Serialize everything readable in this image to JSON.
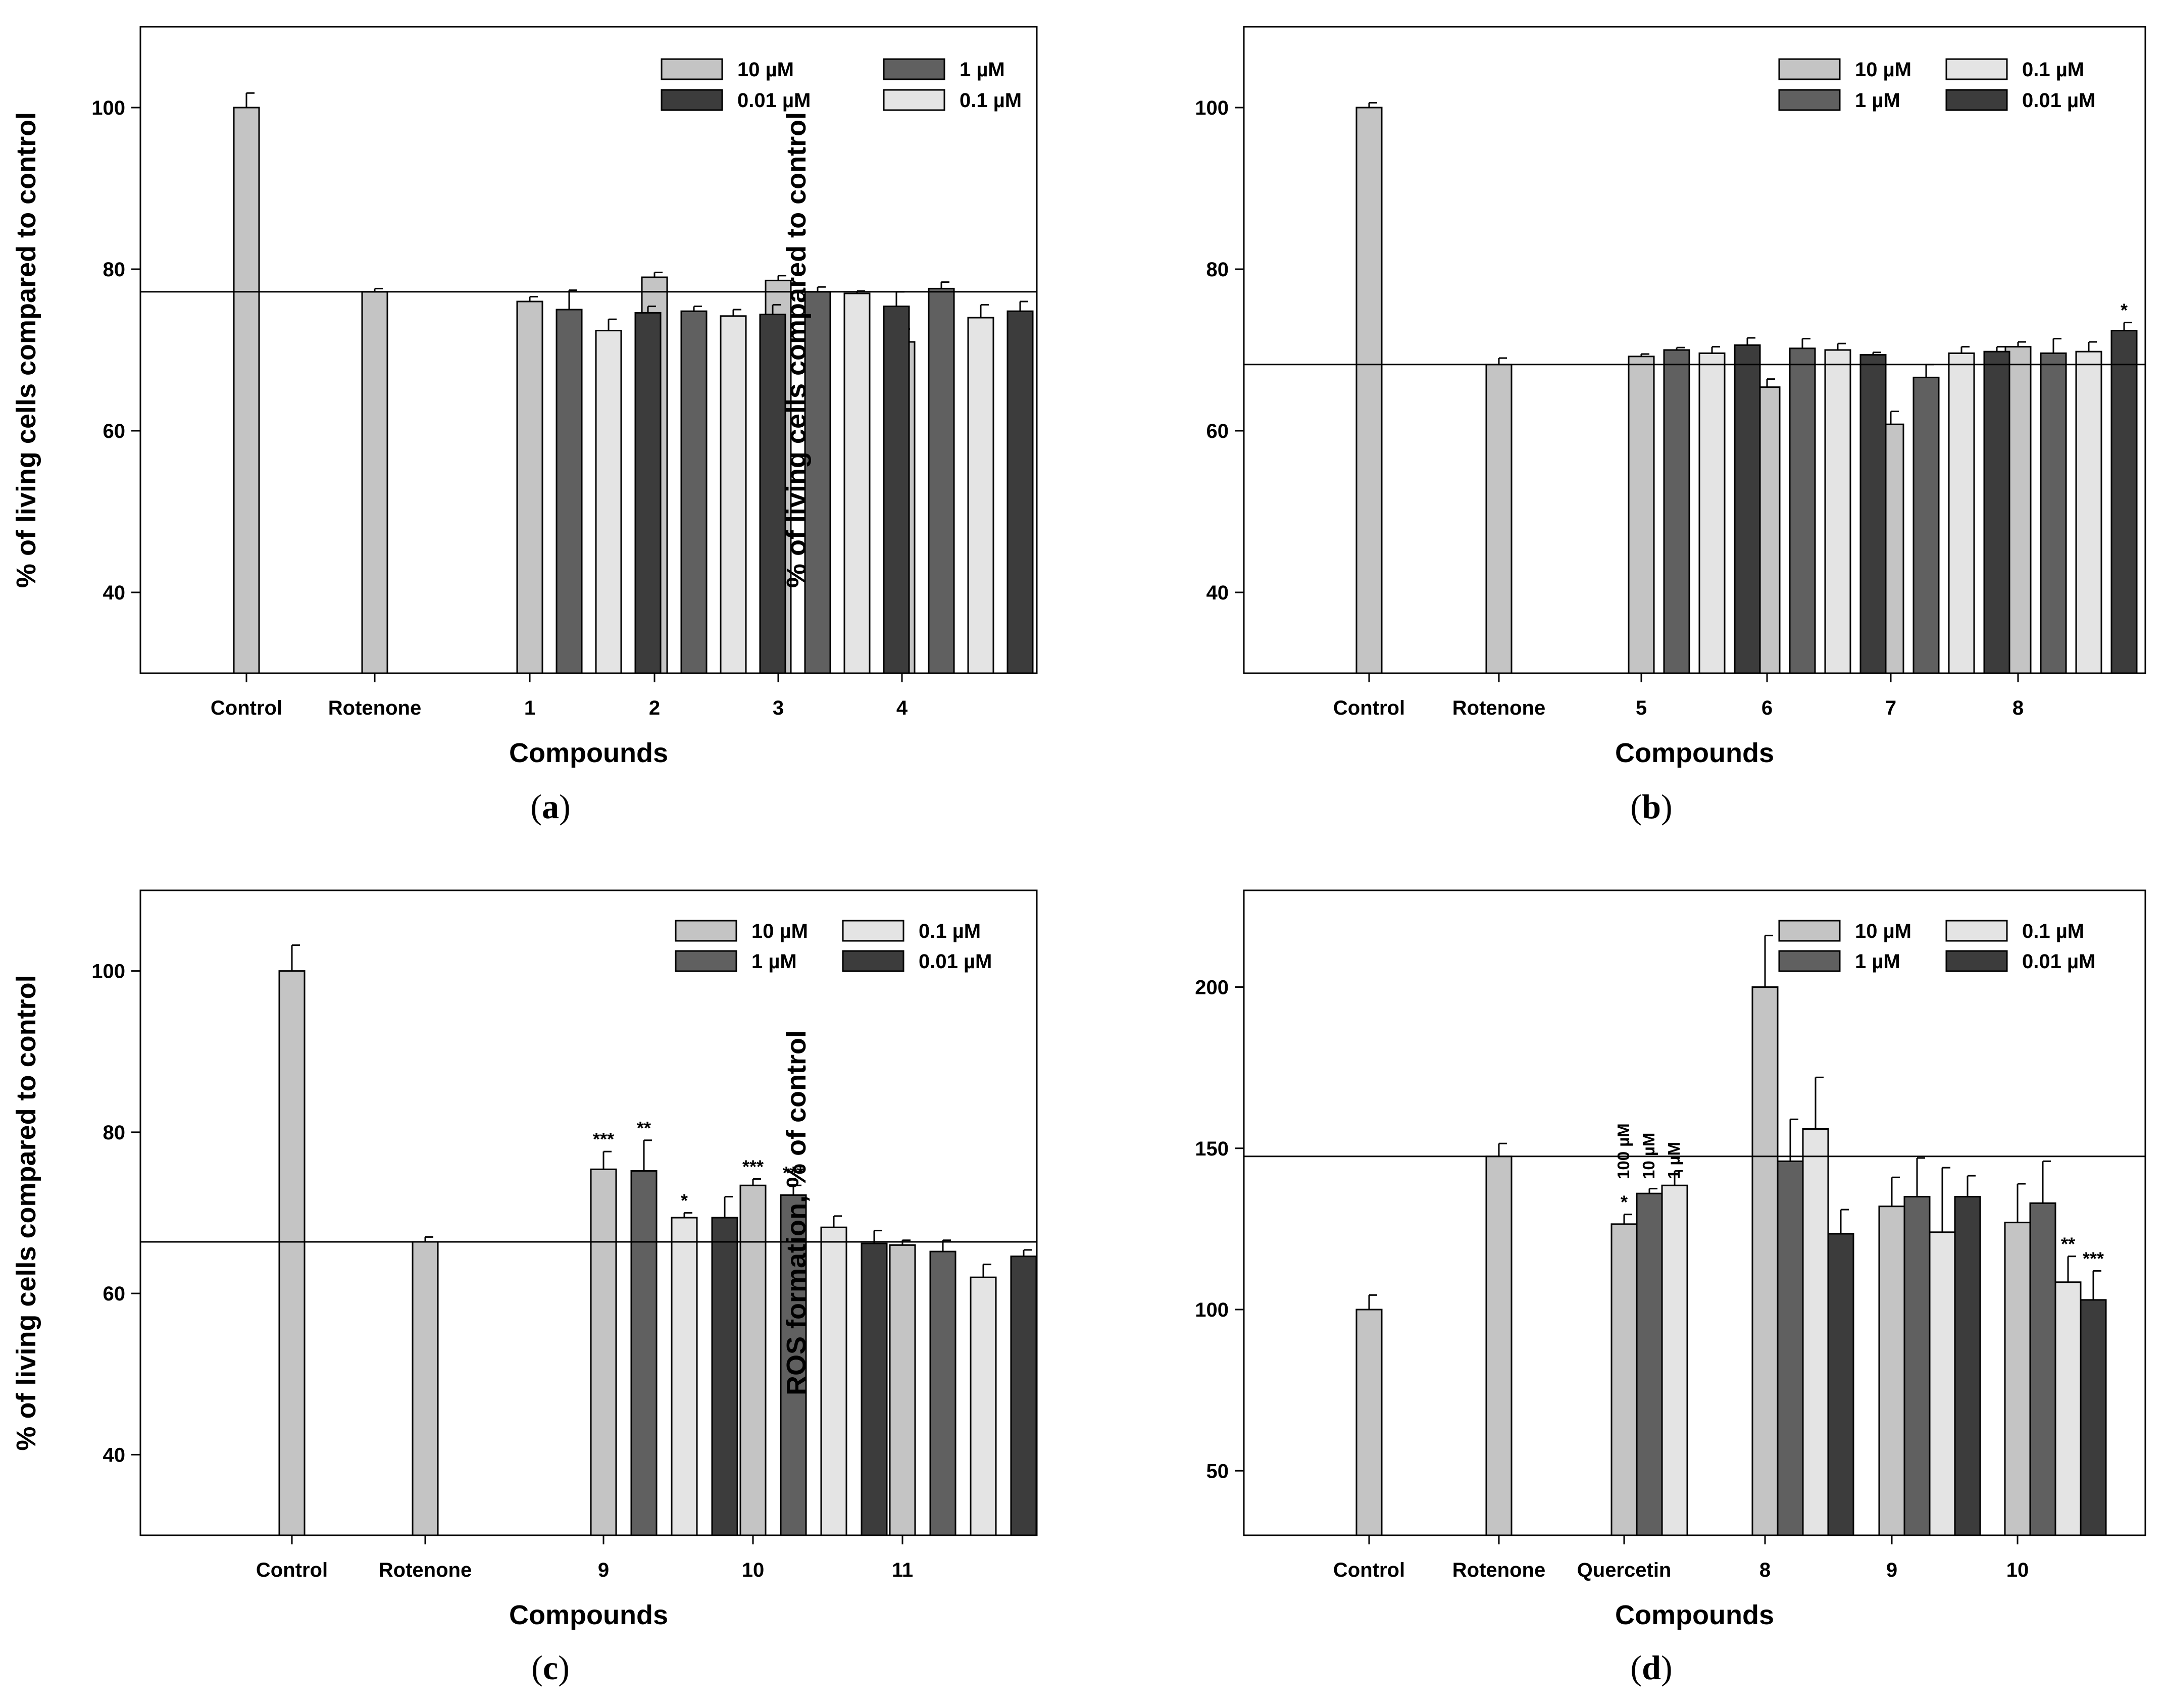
{
  "colors": {
    "c10": "#c4c4c4",
    "c1": "#606060",
    "c001": "#3c3c3c",
    "c01": "#e4e4e4"
  },
  "chart_data": [
    {
      "type": "bar",
      "panel_label": "a",
      "caption": [
        "(",
        "a",
        ")"
      ],
      "xlabel": "Compounds",
      "ylabel": "% of living cells compared to control",
      "ylim": [
        30,
        110
      ],
      "yticks": [
        "40",
        "60",
        "80",
        "100"
      ],
      "ref_line": 77.2,
      "categories": [
        "Control",
        "Rotenone",
        "1",
        "2",
        "3",
        "4"
      ],
      "series": [
        {
          "name": "10 µM",
          "color_key": "c10",
          "values": [
            100,
            77.2,
            76,
            79,
            78.6,
            71
          ],
          "errors": [
            1.8,
            0.4,
            0.6,
            0.6,
            0.6,
            1.6
          ]
        },
        {
          "name": "1 µM",
          "color_key": "c1",
          "values": [
            null,
            null,
            75,
            74.8,
            77.2,
            77.6
          ],
          "errors": [
            null,
            null,
            2.4,
            0.6,
            0.6,
            0.8
          ]
        },
        {
          "name": "0.1 µM",
          "color_key": "c01",
          "values": [
            null,
            null,
            72.4,
            74.2,
            77,
            74
          ],
          "errors": [
            null,
            null,
            1.4,
            0.8,
            0.3,
            1.6
          ]
        },
        {
          "name": "0.01 µM",
          "color_key": "c001",
          "values": [
            null,
            null,
            74.6,
            74.4,
            75.4,
            74.8
          ],
          "errors": [
            null,
            null,
            0.8,
            1.2,
            1.8,
            1.2
          ]
        }
      ],
      "legend": {
        "entries": [
          "10 µM",
          "1 µM",
          "0.01 µM",
          "0.1 µM"
        ],
        "placement": "top-right"
      },
      "stars": [],
      "annotations": []
    },
    {
      "type": "bar",
      "panel_label": "b",
      "caption": [
        "(",
        "b",
        ")"
      ],
      "xlabel": "Compounds",
      "ylabel": "% of living cells compared to control",
      "ylim": [
        30,
        110
      ],
      "yticks": [
        "40",
        "60",
        "80",
        "100"
      ],
      "ref_line": 68.2,
      "categories": [
        "Control",
        "Rotenone",
        "5",
        "6",
        "7",
        "8"
      ],
      "series": [
        {
          "name": "10 µM",
          "color_key": "c10",
          "values": [
            100,
            68.2,
            69.2,
            65.4,
            60.8,
            70.4
          ],
          "errors": [
            0.6,
            0.8,
            0.3,
            1.0,
            1.6,
            0.6
          ]
        },
        {
          "name": "1 µM",
          "color_key": "c1",
          "values": [
            null,
            null,
            70,
            70.2,
            66.6,
            69.6
          ],
          "errors": [
            null,
            null,
            0.3,
            1.2,
            1.6,
            1.8
          ]
        },
        {
          "name": "0.1 µM",
          "color_key": "c01",
          "values": [
            null,
            null,
            69.6,
            70,
            69.6,
            69.8
          ],
          "errors": [
            null,
            null,
            0.8,
            0.8,
            0.8,
            1.2
          ]
        },
        {
          "name": "0.01 µM",
          "color_key": "c001",
          "values": [
            null,
            null,
            70.6,
            69.4,
            69.8,
            72.4
          ],
          "errors": [
            null,
            null,
            0.9,
            0.3,
            0.6,
            1.0
          ]
        }
      ],
      "legend": {
        "entries": [
          "10 µM",
          "0.1 µM",
          "1 µM",
          "0.01 µM"
        ],
        "placement": "top-right"
      },
      "stars": [
        {
          "category_index": 5,
          "series_index": 3,
          "label": "*"
        }
      ],
      "annotations": []
    },
    {
      "type": "bar",
      "panel_label": "c",
      "caption": [
        "(",
        "c",
        ")"
      ],
      "xlabel": "Compounds",
      "ylabel": "% of living cells compared to control",
      "ylim": [
        30,
        110
      ],
      "yticks": [
        "40",
        "60",
        "80",
        "100"
      ],
      "ref_line": 66.4,
      "categories": [
        "Control",
        "Rotenone",
        "9",
        "10",
        "11"
      ],
      "series": [
        {
          "name": "10 µM",
          "color_key": "c10",
          "values": [
            100,
            66.4,
            75.4,
            73.4,
            66
          ],
          "errors": [
            3.2,
            0.6,
            2.2,
            0.8,
            0.6
          ]
        },
        {
          "name": "1 µM",
          "color_key": "c1",
          "values": [
            null,
            null,
            75.2,
            72.2,
            65.2
          ],
          "errors": [
            null,
            null,
            3.8,
            1.2,
            1.4
          ]
        },
        {
          "name": "0.1 µM",
          "color_key": "c01",
          "values": [
            null,
            null,
            69.4,
            68.2,
            62
          ],
          "errors": [
            null,
            null,
            0.6,
            1.4,
            1.6
          ]
        },
        {
          "name": "0.01 µM",
          "color_key": "c001",
          "values": [
            null,
            null,
            69.4,
            66.2,
            64.6
          ],
          "errors": [
            null,
            null,
            2.6,
            1.6,
            0.8
          ]
        }
      ],
      "legend": {
        "entries": [
          "10 µM",
          "0.1 µM",
          "1 µM",
          "0.01 µM"
        ],
        "placement": "top-right"
      },
      "stars": [
        {
          "category_index": 2,
          "series_index": 0,
          "label": "***"
        },
        {
          "category_index": 2,
          "series_index": 1,
          "label": "**"
        },
        {
          "category_index": 2,
          "series_index": 2,
          "label": "*"
        },
        {
          "category_index": 3,
          "series_index": 0,
          "label": "***"
        },
        {
          "category_index": 3,
          "series_index": 1,
          "label": "***"
        }
      ],
      "annotations": []
    },
    {
      "type": "bar",
      "panel_label": "d",
      "caption": [
        "(",
        "d",
        ")"
      ],
      "xlabel": "Compounds",
      "ylabel": "ROS formation, % of control",
      "ylim": [
        30,
        230
      ],
      "yticks": [
        "50",
        "100",
        "150",
        "200"
      ],
      "ref_line": 147.5,
      "categories": [
        "Control",
        "Rotenone",
        "Quercetin",
        "8",
        "9",
        "10"
      ],
      "series": [
        {
          "name": "10 µM",
          "color_key": "c10",
          "values": [
            100,
            147.5,
            126.5,
            200,
            132,
            127
          ],
          "errors": [
            4.5,
            4,
            3,
            16,
            9,
            12
          ]
        },
        {
          "name": "1 µM",
          "color_key": "c1",
          "values": [
            null,
            null,
            136,
            146,
            135,
            133
          ],
          "errors": [
            null,
            null,
            1.5,
            13,
            12,
            13
          ]
        },
        {
          "name": "0.1 µM",
          "color_key": "c01",
          "values": [
            null,
            null,
            138.5,
            156,
            124,
            108.5
          ],
          "errors": [
            null,
            null,
            4.5,
            16,
            20,
            8
          ]
        },
        {
          "name": "0.01 µM",
          "color_key": "c001",
          "values": [
            null,
            null,
            null,
            123.5,
            135,
            103
          ],
          "errors": [
            null,
            null,
            null,
            7.5,
            6.5,
            9
          ]
        }
      ],
      "legend": {
        "entries": [
          "10 µM",
          "0.1 µM",
          "1 µM",
          "0.01 µM"
        ],
        "placement": "top-right"
      },
      "stars": [
        {
          "category_index": 2,
          "series_index": 0,
          "label": "*"
        },
        {
          "category_index": 5,
          "series_index": 2,
          "label": "**"
        },
        {
          "category_index": 5,
          "series_index": 3,
          "label": "***"
        }
      ],
      "annotations": [
        {
          "category_index": 2,
          "series_index": 0,
          "label": "100 µM"
        },
        {
          "category_index": 2,
          "series_index": 1,
          "label": "10 µM"
        },
        {
          "category_index": 2,
          "series_index": 2,
          "label": "1 µM"
        }
      ]
    }
  ]
}
